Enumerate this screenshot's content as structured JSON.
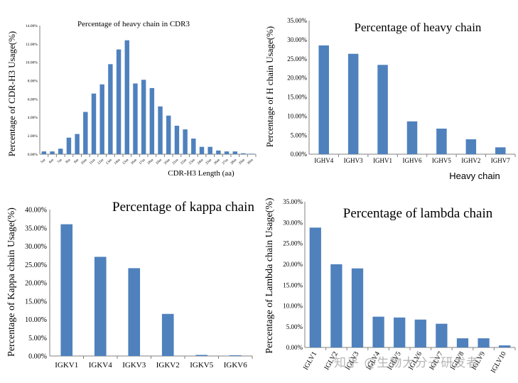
{
  "chart_data": [
    {
      "type": "bar",
      "title": "Percentage of heavy chain in CDR3",
      "xlabel": "CDR-H3 Length (aa)",
      "ylabel": "Percentage of CDR-H3 Usage(%)",
      "ylim": [
        0,
        14
      ],
      "yticks": [
        "0.00%",
        "2.00%",
        "4.00%",
        "6.00%",
        "8.00%",
        "10.00%",
        "12.00%",
        "14.00%"
      ],
      "categories": [
        "5aa",
        "6aa",
        "7aa",
        "8aa",
        "9aa",
        "10aa",
        "11aa",
        "12aa",
        "13aa",
        "14aa",
        "15aa",
        "16aa",
        "17aa",
        "18aa",
        "19aa",
        "20aa",
        "21aa",
        "22aa",
        "23aa",
        "24aa",
        "25aa",
        "26aa",
        "27aa",
        "28aa",
        "29aa",
        "30aa"
      ],
      "values": [
        0.3,
        0.3,
        0.6,
        1.8,
        2.2,
        4.6,
        6.6,
        7.6,
        9.8,
        11.4,
        12.4,
        7.7,
        8.1,
        7.2,
        5.2,
        4.2,
        3.1,
        2.7,
        1.7,
        0.8,
        0.8,
        0.4,
        0.3,
        0.3,
        0.1,
        0.05
      ]
    },
    {
      "type": "bar",
      "title": "Percentage of heavy chain",
      "xlabel": "Heavy chain",
      "ylabel": "Percentage of H chain Usage(%)",
      "ylim": [
        0,
        35
      ],
      "yticks": [
        "0.00%",
        "5.00%",
        "10.00%",
        "15.00%",
        "20.00%",
        "25.00%",
        "30.00%",
        "35.00%"
      ],
      "categories": [
        "IGHV4",
        "IGHV3",
        "IGHV1",
        "IGHV6",
        "IGHV5",
        "IGHV2",
        "IGHV7"
      ],
      "values": [
        28.5,
        26.3,
        23.4,
        8.6,
        6.7,
        3.9,
        1.8
      ]
    },
    {
      "type": "bar",
      "title": "Percentage of kappa chain",
      "xlabel": "",
      "ylabel": "Percentage of Kappa chain Usage(%)",
      "ylim": [
        0,
        40
      ],
      "yticks": [
        "0.00%",
        "5.00%",
        "10.00%",
        "15.00%",
        "20.00%",
        "25.00%",
        "30.00%",
        "35.00%",
        "40.00%"
      ],
      "categories": [
        "IGKV1",
        "IGKV4",
        "IGKV3",
        "IGKV2",
        "IGKV5",
        "IGKV6"
      ],
      "values": [
        36.0,
        27.1,
        24.0,
        11.5,
        0.3,
        0.2
      ]
    },
    {
      "type": "bar",
      "title": "Percentage of lambda chain",
      "xlabel": "",
      "ylabel": "Percentage of Lambda chain Usage(%)",
      "ylim": [
        0,
        35
      ],
      "yticks": [
        "0.00%",
        "5.00%",
        "10.00%",
        "15.00%",
        "20.00%",
        "25.00%",
        "30.00%",
        "35.00%"
      ],
      "categories": [
        "IGLV1",
        "IGLV2",
        "IGLV3",
        "IGLV4",
        "IGLV5",
        "IGLV6",
        "IGLV7",
        "IGLV8",
        "IGLV9",
        "IGLV10"
      ],
      "values": [
        28.8,
        20.0,
        19.0,
        7.4,
        7.2,
        6.7,
        5.7,
        2.2,
        2.2,
        0.5
      ]
    }
  ],
  "watermark": "知乎 @生物大分子研发者"
}
